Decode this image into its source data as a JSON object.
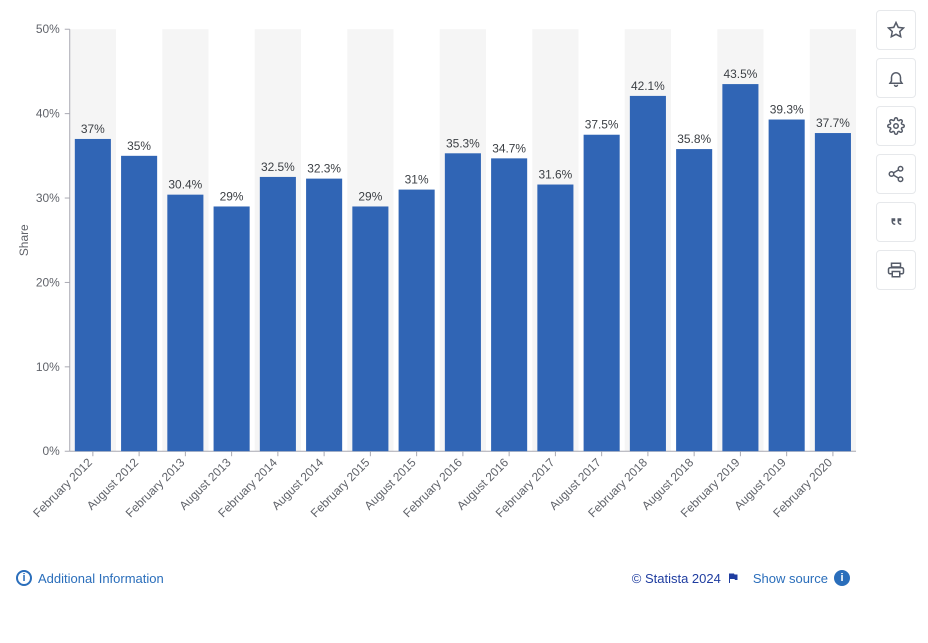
{
  "chart": {
    "type": "bar",
    "y_axis_label": "Share",
    "ylim": [
      0,
      50
    ],
    "ytick_step": 10,
    "ytick_suffix": "%",
    "bar_color": "#3065b5",
    "background_color": "#ffffff",
    "alt_band_color": "#f5f5f5",
    "axis_line_color": "#a9a9b2",
    "tick_label_color": "#60636a",
    "axis_label_color": "#60636a",
    "value_label_color": "#3b3f44",
    "label_fontsize": 12,
    "value_label_fontsize": 12,
    "tick_fontsize": 12,
    "categories": [
      "February 2012",
      "August 2012",
      "February 2013",
      "August 2013",
      "February 2014",
      "August 2014",
      "February 2015",
      "August 2015",
      "February 2016",
      "August 2016",
      "February 2017",
      "August 2017",
      "February 2018",
      "August 2018",
      "February 2019",
      "August 2019",
      "February 2020"
    ],
    "values": [
      37,
      35,
      30.4,
      29,
      32.5,
      32.3,
      29,
      31,
      35.3,
      34.7,
      31.6,
      37.5,
      42.1,
      35.8,
      43.5,
      39.3,
      37.7
    ],
    "value_labels": [
      "37%",
      "35%",
      "30.4%",
      "29%",
      "32.5%",
      "32.3%",
      "29%",
      "31%",
      "35.3%",
      "34.7%",
      "31.6%",
      "37.5%",
      "42.1%",
      "35.8%",
      "43.5%",
      "39.3%",
      "37.7%"
    ],
    "bar_gap_ratio": 0.22
  },
  "footer": {
    "additional_info": "Additional Information",
    "copyright": "© Statista 2024",
    "show_source": "Show source"
  },
  "toolbar": {
    "star": "star-icon",
    "bell": "bell-icon",
    "gear": "gear-icon",
    "share": "share-icon",
    "quote": "quote-icon",
    "print": "print-icon"
  }
}
